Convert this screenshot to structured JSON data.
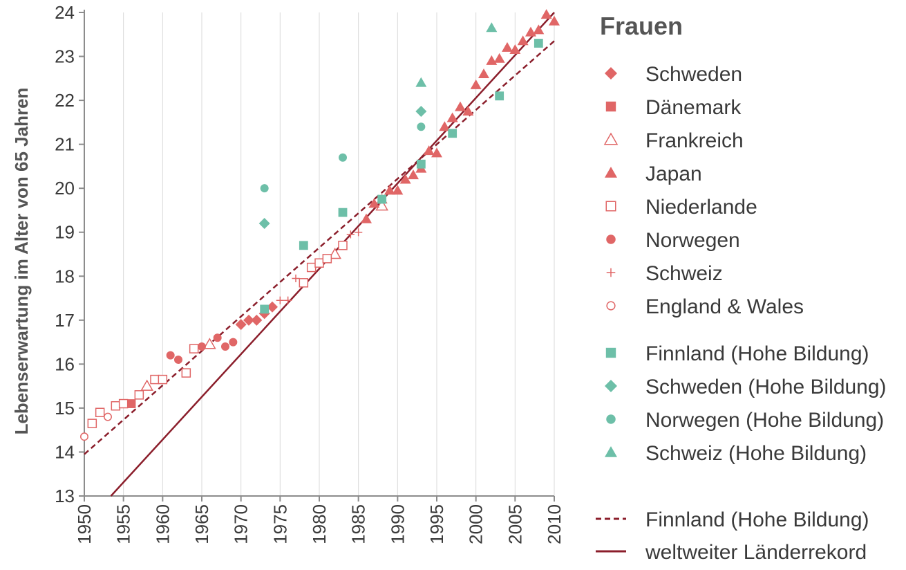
{
  "chart_data": {
    "type": "scatter",
    "title": "Frauen",
    "ylabel": "Lebenserwartung im Alter von 65 Jahren",
    "xlabel": "",
    "xlim": [
      1950,
      2010
    ],
    "ylim": [
      13,
      24
    ],
    "xticks": [
      1950,
      1955,
      1960,
      1965,
      1970,
      1975,
      1980,
      1985,
      1990,
      1995,
      2000,
      2005,
      2010
    ],
    "yticks": [
      13,
      14,
      15,
      16,
      17,
      18,
      19,
      20,
      21,
      22,
      23,
      24
    ],
    "grid": "vertical",
    "legend_position": "right",
    "colors": {
      "red": "#e06666",
      "teal": "#6dbfa8",
      "line": "#8b1e2b"
    },
    "series": [
      {
        "name": "Schweden",
        "marker": "diamond",
        "color": "#e06666",
        "points": [
          [
            1970,
            16.9
          ],
          [
            1971,
            17.0
          ],
          [
            1972,
            17.0
          ],
          [
            1973,
            17.15
          ],
          [
            1974,
            17.3
          ]
        ]
      },
      {
        "name": "Dänemark",
        "marker": "square",
        "color": "#e06666",
        "points": [
          [
            1956,
            15.1
          ]
        ]
      },
      {
        "name": "Frankreich",
        "marker": "triangle-open",
        "color": "#e06666",
        "points": [
          [
            1958,
            15.5
          ],
          [
            1966,
            16.45
          ],
          [
            1982,
            18.5
          ],
          [
            1988,
            19.6
          ]
        ]
      },
      {
        "name": "Japan",
        "marker": "triangle",
        "color": "#e06666",
        "points": [
          [
            1986,
            19.3
          ],
          [
            1987,
            19.65
          ],
          [
            1988,
            19.75
          ],
          [
            1989,
            19.95
          ],
          [
            1990,
            19.95
          ],
          [
            1991,
            20.2
          ],
          [
            1992,
            20.3
          ],
          [
            1993,
            20.45
          ],
          [
            1994,
            20.85
          ],
          [
            1995,
            20.8
          ],
          [
            1996,
            21.4
          ],
          [
            1997,
            21.6
          ],
          [
            1998,
            21.85
          ],
          [
            1999,
            21.75
          ],
          [
            2000,
            22.35
          ],
          [
            2001,
            22.6
          ],
          [
            2002,
            22.9
          ],
          [
            2003,
            22.95
          ],
          [
            2004,
            23.2
          ],
          [
            2005,
            23.15
          ],
          [
            2006,
            23.35
          ],
          [
            2007,
            23.55
          ],
          [
            2008,
            23.6
          ],
          [
            2009,
            23.95
          ],
          [
            2010,
            23.8
          ]
        ]
      },
      {
        "name": "Niederlande",
        "marker": "square-open",
        "color": "#e06666",
        "points": [
          [
            1951,
            14.65
          ],
          [
            1952,
            14.9
          ],
          [
            1954,
            15.05
          ],
          [
            1955,
            15.1
          ],
          [
            1957,
            15.3
          ],
          [
            1959,
            15.65
          ],
          [
            1960,
            15.65
          ],
          [
            1963,
            15.8
          ],
          [
            1964,
            16.35
          ],
          [
            1979,
            18.2
          ],
          [
            1980,
            18.3
          ],
          [
            1981,
            18.4
          ],
          [
            1983,
            18.7
          ],
          [
            1978,
            17.85
          ]
        ]
      },
      {
        "name": "Norwegen",
        "marker": "circle",
        "color": "#e06666",
        "points": [
          [
            1961,
            16.2
          ],
          [
            1962,
            16.1
          ],
          [
            1965,
            16.4
          ],
          [
            1967,
            16.6
          ],
          [
            1968,
            16.4
          ],
          [
            1969,
            16.5
          ]
        ]
      },
      {
        "name": "Schweiz",
        "marker": "plus",
        "color": "#e06666",
        "points": [
          [
            1975,
            17.45
          ],
          [
            1976,
            17.45
          ],
          [
            1977,
            17.95
          ],
          [
            1984,
            18.95
          ],
          [
            1985,
            19.0
          ]
        ]
      },
      {
        "name": "England & Wales",
        "marker": "circle-open",
        "color": "#e06666",
        "points": [
          [
            1950,
            14.35
          ],
          [
            1953,
            14.8
          ]
        ]
      },
      {
        "name": "Finnland (Hohe Bildung)",
        "marker": "square",
        "color": "#6dbfa8",
        "points": [
          [
            1973,
            17.25
          ],
          [
            1978,
            18.7
          ],
          [
            1983,
            19.45
          ],
          [
            1988,
            19.75
          ],
          [
            1993,
            20.55
          ],
          [
            1997,
            21.25
          ],
          [
            2003,
            22.1
          ],
          [
            2008,
            23.3
          ]
        ]
      },
      {
        "name": "Schweden (Hohe Bildung)",
        "marker": "diamond",
        "color": "#6dbfa8",
        "points": [
          [
            1973,
            19.2
          ],
          [
            1993,
            21.75
          ]
        ]
      },
      {
        "name": "Norwegen (Hohe Bildung)",
        "marker": "circle",
        "color": "#6dbfa8",
        "points": [
          [
            1973,
            20.0
          ],
          [
            1983,
            20.7
          ],
          [
            1993,
            21.4
          ]
        ]
      },
      {
        "name": "Schweiz (Hohe Bildung)",
        "marker": "triangle",
        "color": "#6dbfa8",
        "points": [
          [
            1993,
            22.4
          ],
          [
            2002,
            23.65
          ]
        ]
      }
    ],
    "lines": [
      {
        "name": "Finnland (Hohe Bildung)",
        "style": "dashed",
        "color": "#8b1e2b",
        "from": [
          1950,
          13.95
        ],
        "to": [
          2010,
          23.35
        ]
      },
      {
        "name": "weltweiter Länderrekord",
        "style": "solid",
        "color": "#8b1e2b",
        "from": [
          1953.4,
          13.0
        ],
        "to": [
          2010,
          24.0
        ]
      }
    ]
  }
}
